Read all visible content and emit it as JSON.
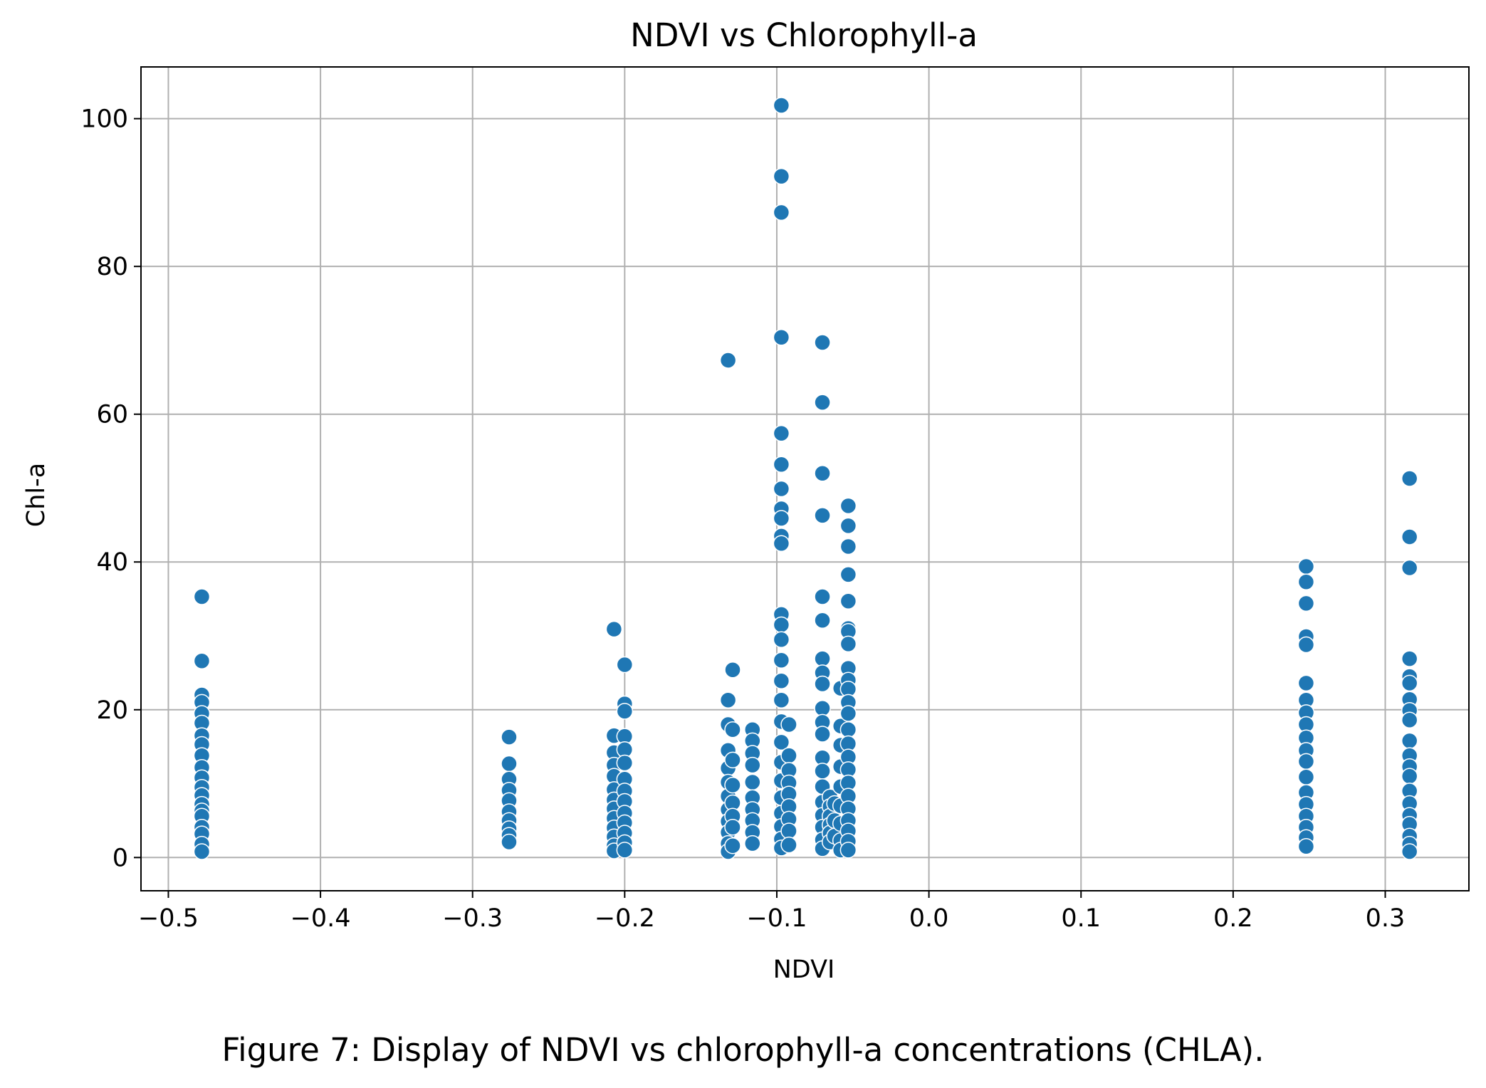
{
  "caption": "Figure 7: Display of NDVI vs chlorophyll-a concentrations (CHLA).",
  "chart_data": {
    "type": "scatter",
    "title": "NDVI vs Chlorophyll-a",
    "xlabel": "NDVI",
    "ylabel": "Chl-a",
    "xlim": [
      -0.518,
      0.355
    ],
    "ylim": [
      -4.5,
      107
    ],
    "x_ticks": [
      -0.5,
      -0.4,
      -0.3,
      -0.2,
      -0.1,
      0.0,
      0.1,
      0.2,
      0.3
    ],
    "x_tick_labels": [
      "−0.5",
      "−0.4",
      "−0.3",
      "−0.2",
      "−0.1",
      "0.0",
      "0.1",
      "0.2",
      "0.3"
    ],
    "y_ticks": [
      0,
      20,
      40,
      60,
      80,
      100
    ],
    "y_tick_labels": [
      "0",
      "20",
      "40",
      "60",
      "80",
      "100"
    ],
    "grid": true,
    "colors": {
      "marker": "#1f77b4",
      "marker_edge": "#ffffff",
      "grid": "#b0b0b0",
      "axes": "#000000"
    },
    "points": [
      {
        "x": -0.478,
        "y": 35.3
      },
      {
        "x": -0.478,
        "y": 26.6
      },
      {
        "x": -0.478,
        "y": 22.0
      },
      {
        "x": -0.478,
        "y": 21.0
      },
      {
        "x": -0.478,
        "y": 19.5
      },
      {
        "x": -0.478,
        "y": 18.2
      },
      {
        "x": -0.478,
        "y": 16.5
      },
      {
        "x": -0.478,
        "y": 15.3
      },
      {
        "x": -0.478,
        "y": 13.8
      },
      {
        "x": -0.478,
        "y": 12.2
      },
      {
        "x": -0.478,
        "y": 10.8
      },
      {
        "x": -0.478,
        "y": 9.5
      },
      {
        "x": -0.478,
        "y": 8.4
      },
      {
        "x": -0.478,
        "y": 7.2
      },
      {
        "x": -0.478,
        "y": 6.3
      },
      {
        "x": -0.478,
        "y": 5.6
      },
      {
        "x": -0.478,
        "y": 4.1
      },
      {
        "x": -0.478,
        "y": 3.2
      },
      {
        "x": -0.478,
        "y": 1.8
      },
      {
        "x": -0.478,
        "y": 0.8
      },
      {
        "x": -0.276,
        "y": 16.3
      },
      {
        "x": -0.276,
        "y": 12.7
      },
      {
        "x": -0.276,
        "y": 10.6
      },
      {
        "x": -0.276,
        "y": 9.1
      },
      {
        "x": -0.276,
        "y": 7.7
      },
      {
        "x": -0.276,
        "y": 6.2
      },
      {
        "x": -0.276,
        "y": 5.0
      },
      {
        "x": -0.276,
        "y": 3.9
      },
      {
        "x": -0.276,
        "y": 3.0
      },
      {
        "x": -0.276,
        "y": 2.1
      },
      {
        "x": -0.207,
        "y": 30.9
      },
      {
        "x": -0.207,
        "y": 16.5
      },
      {
        "x": -0.207,
        "y": 14.2
      },
      {
        "x": -0.207,
        "y": 12.5
      },
      {
        "x": -0.207,
        "y": 11.0
      },
      {
        "x": -0.207,
        "y": 9.2
      },
      {
        "x": -0.207,
        "y": 7.8
      },
      {
        "x": -0.207,
        "y": 6.6
      },
      {
        "x": -0.207,
        "y": 5.3
      },
      {
        "x": -0.207,
        "y": 4.0
      },
      {
        "x": -0.207,
        "y": 2.8
      },
      {
        "x": -0.207,
        "y": 1.6
      },
      {
        "x": -0.207,
        "y": 0.9
      },
      {
        "x": -0.2,
        "y": 26.1
      },
      {
        "x": -0.2,
        "y": 20.8
      },
      {
        "x": -0.2,
        "y": 19.8
      },
      {
        "x": -0.2,
        "y": 16.4
      },
      {
        "x": -0.2,
        "y": 14.6
      },
      {
        "x": -0.2,
        "y": 12.8
      },
      {
        "x": -0.2,
        "y": 10.6
      },
      {
        "x": -0.2,
        "y": 9.0
      },
      {
        "x": -0.2,
        "y": 7.6
      },
      {
        "x": -0.2,
        "y": 6.0
      },
      {
        "x": -0.2,
        "y": 4.7
      },
      {
        "x": -0.2,
        "y": 3.3
      },
      {
        "x": -0.2,
        "y": 2.0
      },
      {
        "x": -0.2,
        "y": 1.0
      },
      {
        "x": -0.132,
        "y": 67.3
      },
      {
        "x": -0.132,
        "y": 21.3
      },
      {
        "x": -0.132,
        "y": 18.0
      },
      {
        "x": -0.132,
        "y": 14.5
      },
      {
        "x": -0.132,
        "y": 12.1
      },
      {
        "x": -0.132,
        "y": 10.2
      },
      {
        "x": -0.132,
        "y": 8.3
      },
      {
        "x": -0.132,
        "y": 6.5
      },
      {
        "x": -0.132,
        "y": 4.9
      },
      {
        "x": -0.132,
        "y": 3.4
      },
      {
        "x": -0.132,
        "y": 1.9
      },
      {
        "x": -0.132,
        "y": 0.8
      },
      {
        "x": -0.129,
        "y": 25.4
      },
      {
        "x": -0.129,
        "y": 17.3
      },
      {
        "x": -0.129,
        "y": 13.2
      },
      {
        "x": -0.129,
        "y": 9.8
      },
      {
        "x": -0.129,
        "y": 7.4
      },
      {
        "x": -0.129,
        "y": 5.6
      },
      {
        "x": -0.129,
        "y": 4.1
      },
      {
        "x": -0.129,
        "y": 1.6
      },
      {
        "x": -0.116,
        "y": 17.3
      },
      {
        "x": -0.116,
        "y": 15.8
      },
      {
        "x": -0.116,
        "y": 14.1
      },
      {
        "x": -0.116,
        "y": 12.5
      },
      {
        "x": -0.116,
        "y": 10.2
      },
      {
        "x": -0.116,
        "y": 8.1
      },
      {
        "x": -0.116,
        "y": 6.5
      },
      {
        "x": -0.116,
        "y": 5.0
      },
      {
        "x": -0.116,
        "y": 3.4
      },
      {
        "x": -0.116,
        "y": 1.9
      },
      {
        "x": -0.097,
        "y": 101.8
      },
      {
        "x": -0.097,
        "y": 92.2
      },
      {
        "x": -0.097,
        "y": 87.3
      },
      {
        "x": -0.097,
        "y": 70.4
      },
      {
        "x": -0.097,
        "y": 57.4
      },
      {
        "x": -0.097,
        "y": 53.2
      },
      {
        "x": -0.097,
        "y": 49.9
      },
      {
        "x": -0.097,
        "y": 47.2
      },
      {
        "x": -0.097,
        "y": 45.9
      },
      {
        "x": -0.097,
        "y": 43.5
      },
      {
        "x": -0.097,
        "y": 42.5
      },
      {
        "x": -0.097,
        "y": 32.9
      },
      {
        "x": -0.097,
        "y": 31.5
      },
      {
        "x": -0.097,
        "y": 29.5
      },
      {
        "x": -0.097,
        "y": 26.7
      },
      {
        "x": -0.097,
        "y": 23.9
      },
      {
        "x": -0.097,
        "y": 21.3
      },
      {
        "x": -0.097,
        "y": 18.4
      },
      {
        "x": -0.097,
        "y": 15.6
      },
      {
        "x": -0.097,
        "y": 12.9
      },
      {
        "x": -0.097,
        "y": 10.4
      },
      {
        "x": -0.097,
        "y": 8.1
      },
      {
        "x": -0.097,
        "y": 6.0
      },
      {
        "x": -0.097,
        "y": 4.2
      },
      {
        "x": -0.097,
        "y": 2.5
      },
      {
        "x": -0.097,
        "y": 1.3
      },
      {
        "x": -0.092,
        "y": 18.0
      },
      {
        "x": -0.092,
        "y": 13.8
      },
      {
        "x": -0.092,
        "y": 11.8
      },
      {
        "x": -0.092,
        "y": 10.1
      },
      {
        "x": -0.092,
        "y": 8.6
      },
      {
        "x": -0.092,
        "y": 6.9
      },
      {
        "x": -0.092,
        "y": 5.2
      },
      {
        "x": -0.092,
        "y": 3.6
      },
      {
        "x": -0.092,
        "y": 1.7
      },
      {
        "x": -0.07,
        "y": 69.7
      },
      {
        "x": -0.07,
        "y": 61.6
      },
      {
        "x": -0.07,
        "y": 52.0
      },
      {
        "x": -0.07,
        "y": 46.3
      },
      {
        "x": -0.07,
        "y": 35.3
      },
      {
        "x": -0.07,
        "y": 32.1
      },
      {
        "x": -0.07,
        "y": 26.9
      },
      {
        "x": -0.07,
        "y": 25.0
      },
      {
        "x": -0.07,
        "y": 23.5
      },
      {
        "x": -0.07,
        "y": 20.2
      },
      {
        "x": -0.07,
        "y": 18.3
      },
      {
        "x": -0.07,
        "y": 16.7
      },
      {
        "x": -0.07,
        "y": 13.5
      },
      {
        "x": -0.07,
        "y": 11.7
      },
      {
        "x": -0.07,
        "y": 9.6
      },
      {
        "x": -0.07,
        "y": 7.5
      },
      {
        "x": -0.07,
        "y": 5.7
      },
      {
        "x": -0.07,
        "y": 4.1
      },
      {
        "x": -0.07,
        "y": 2.4
      },
      {
        "x": -0.07,
        "y": 1.2
      },
      {
        "x": -0.065,
        "y": 8.2
      },
      {
        "x": -0.065,
        "y": 6.9
      },
      {
        "x": -0.065,
        "y": 5.6
      },
      {
        "x": -0.065,
        "y": 4.4
      },
      {
        "x": -0.065,
        "y": 3.3
      },
      {
        "x": -0.065,
        "y": 2.1
      },
      {
        "x": -0.062,
        "y": 7.3
      },
      {
        "x": -0.062,
        "y": 5.0
      },
      {
        "x": -0.062,
        "y": 2.9
      },
      {
        "x": -0.058,
        "y": 22.9
      },
      {
        "x": -0.058,
        "y": 17.8
      },
      {
        "x": -0.058,
        "y": 15.2
      },
      {
        "x": -0.058,
        "y": 12.3
      },
      {
        "x": -0.058,
        "y": 9.6
      },
      {
        "x": -0.058,
        "y": 7.0
      },
      {
        "x": -0.058,
        "y": 4.6
      },
      {
        "x": -0.058,
        "y": 2.3
      },
      {
        "x": -0.058,
        "y": 1.0
      },
      {
        "x": -0.053,
        "y": 47.6
      },
      {
        "x": -0.053,
        "y": 44.9
      },
      {
        "x": -0.053,
        "y": 42.1
      },
      {
        "x": -0.053,
        "y": 38.3
      },
      {
        "x": -0.053,
        "y": 34.7
      },
      {
        "x": -0.053,
        "y": 31.0
      },
      {
        "x": -0.053,
        "y": 30.6
      },
      {
        "x": -0.053,
        "y": 28.9
      },
      {
        "x": -0.053,
        "y": 25.6
      },
      {
        "x": -0.053,
        "y": 24.0
      },
      {
        "x": -0.053,
        "y": 22.8
      },
      {
        "x": -0.053,
        "y": 21.0
      },
      {
        "x": -0.053,
        "y": 19.5
      },
      {
        "x": -0.053,
        "y": 17.3
      },
      {
        "x": -0.053,
        "y": 15.4
      },
      {
        "x": -0.053,
        "y": 13.6
      },
      {
        "x": -0.053,
        "y": 11.9
      },
      {
        "x": -0.053,
        "y": 10.1
      },
      {
        "x": -0.053,
        "y": 8.3
      },
      {
        "x": -0.053,
        "y": 6.6
      },
      {
        "x": -0.053,
        "y": 5.0
      },
      {
        "x": -0.053,
        "y": 3.6
      },
      {
        "x": -0.053,
        "y": 2.2
      },
      {
        "x": -0.053,
        "y": 1.0
      },
      {
        "x": 0.248,
        "y": 39.4
      },
      {
        "x": 0.248,
        "y": 37.3
      },
      {
        "x": 0.248,
        "y": 34.4
      },
      {
        "x": 0.248,
        "y": 29.9
      },
      {
        "x": 0.248,
        "y": 28.8
      },
      {
        "x": 0.248,
        "y": 23.6
      },
      {
        "x": 0.248,
        "y": 21.3
      },
      {
        "x": 0.248,
        "y": 19.6
      },
      {
        "x": 0.248,
        "y": 18.0
      },
      {
        "x": 0.248,
        "y": 16.2
      },
      {
        "x": 0.248,
        "y": 14.5
      },
      {
        "x": 0.248,
        "y": 13.0
      },
      {
        "x": 0.248,
        "y": 10.9
      },
      {
        "x": 0.248,
        "y": 8.8
      },
      {
        "x": 0.248,
        "y": 7.2
      },
      {
        "x": 0.248,
        "y": 5.6
      },
      {
        "x": 0.248,
        "y": 4.1
      },
      {
        "x": 0.248,
        "y": 2.7
      },
      {
        "x": 0.248,
        "y": 1.5
      },
      {
        "x": 0.316,
        "y": 51.3
      },
      {
        "x": 0.316,
        "y": 43.4
      },
      {
        "x": 0.316,
        "y": 39.2
      },
      {
        "x": 0.316,
        "y": 26.9
      },
      {
        "x": 0.316,
        "y": 24.5
      },
      {
        "x": 0.316,
        "y": 23.6
      },
      {
        "x": 0.316,
        "y": 21.4
      },
      {
        "x": 0.316,
        "y": 19.9
      },
      {
        "x": 0.316,
        "y": 18.6
      },
      {
        "x": 0.316,
        "y": 15.8
      },
      {
        "x": 0.316,
        "y": 13.8
      },
      {
        "x": 0.316,
        "y": 12.3
      },
      {
        "x": 0.316,
        "y": 11.0
      },
      {
        "x": 0.316,
        "y": 9.0
      },
      {
        "x": 0.316,
        "y": 7.3
      },
      {
        "x": 0.316,
        "y": 5.7
      },
      {
        "x": 0.316,
        "y": 4.5
      },
      {
        "x": 0.316,
        "y": 2.9
      },
      {
        "x": 0.316,
        "y": 1.8
      },
      {
        "x": 0.316,
        "y": 0.8
      }
    ]
  }
}
